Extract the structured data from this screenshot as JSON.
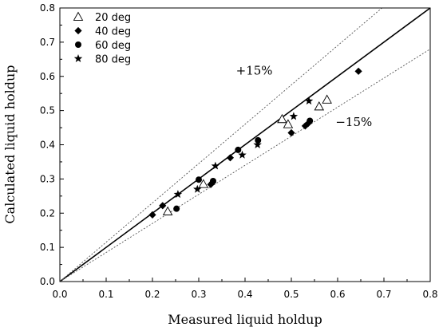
{
  "chart_data": {
    "type": "scatter",
    "xlabel": "Measured liquid holdup",
    "ylabel": "Calculated liquid holdup",
    "xlim": [
      0.0,
      0.8
    ],
    "ylim": [
      0.0,
      0.8
    ],
    "xticks": [
      "0.0",
      "0.1",
      "0.2",
      "0.3",
      "0.4",
      "0.5",
      "0.6",
      "0.7",
      "0.8"
    ],
    "yticks": [
      "0.0",
      "0.1",
      "0.2",
      "0.3",
      "0.4",
      "0.5",
      "0.6",
      "0.7",
      "0.8"
    ],
    "grid": false,
    "legend_position": "top-left",
    "reference_lines": [
      {
        "kind": "solid",
        "slope": 1.0
      },
      {
        "kind": "dotted",
        "slope": 1.15
      },
      {
        "kind": "dotted",
        "slope": 0.85
      }
    ],
    "annotations": [
      {
        "text": "+15%",
        "x": 0.42,
        "y": 0.605
      },
      {
        "text": "−15%",
        "x": 0.635,
        "y": 0.455
      }
    ],
    "series": [
      {
        "name": "20 deg",
        "marker": "triangle-open",
        "points": [
          [
            0.233,
            0.205
          ],
          [
            0.31,
            0.285
          ],
          [
            0.48,
            0.475
          ],
          [
            0.493,
            0.46
          ],
          [
            0.56,
            0.512
          ],
          [
            0.577,
            0.532
          ]
        ]
      },
      {
        "name": "40 deg",
        "marker": "diamond-filled",
        "points": [
          [
            0.2,
            0.195
          ],
          [
            0.222,
            0.222
          ],
          [
            0.326,
            0.284
          ],
          [
            0.33,
            0.29
          ],
          [
            0.368,
            0.362
          ],
          [
            0.5,
            0.435
          ],
          [
            0.53,
            0.455
          ],
          [
            0.536,
            0.462
          ],
          [
            0.645,
            0.615
          ]
        ]
      },
      {
        "name": "60 deg",
        "marker": "circle-filled",
        "points": [
          [
            0.252,
            0.213
          ],
          [
            0.3,
            0.298
          ],
          [
            0.331,
            0.294
          ],
          [
            0.385,
            0.385
          ],
          [
            0.428,
            0.413
          ],
          [
            0.54,
            0.47
          ]
        ]
      },
      {
        "name": "80 deg",
        "marker": "star-filled",
        "points": [
          [
            0.255,
            0.255
          ],
          [
            0.297,
            0.27
          ],
          [
            0.336,
            0.338
          ],
          [
            0.394,
            0.37
          ],
          [
            0.427,
            0.4
          ],
          [
            0.505,
            0.483
          ],
          [
            0.538,
            0.528
          ]
        ]
      }
    ]
  }
}
